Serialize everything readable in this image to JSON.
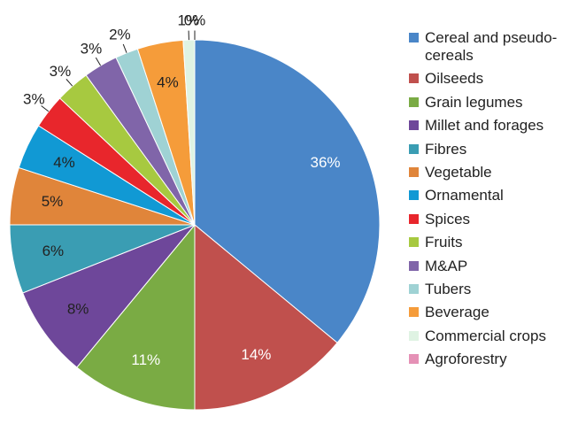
{
  "chart_data": {
    "type": "pie",
    "categories": [
      "Cereal and pseudo-cereals",
      "Oilseeds",
      "Grain legumes",
      "Millet and forages",
      "Fibres",
      "Vegetable",
      "Ornamental",
      "Spices",
      "Fruits",
      "M&AP",
      "Tubers",
      "Beverage",
      "Commercial crops",
      "Agroforestry"
    ],
    "values": [
      36,
      14,
      11,
      8,
      6,
      5,
      4,
      3,
      3,
      3,
      2,
      4,
      1,
      0
    ],
    "value_labels": [
      "36%",
      "14%",
      "11%",
      "8%",
      "6%",
      "5%",
      "4%",
      "3%",
      "3%",
      "3%",
      "2%",
      "4%",
      "1%",
      "0%"
    ],
    "colors": [
      "#4a86c8",
      "#c0504d",
      "#7aab44",
      "#6e479a",
      "#3a9db3",
      "#e0853a",
      "#1199d4",
      "#e8262c",
      "#a7c940",
      "#8065a9",
      "#9fd2d4",
      "#f59c3a",
      "#dff3e3",
      "#e591b6"
    ]
  }
}
